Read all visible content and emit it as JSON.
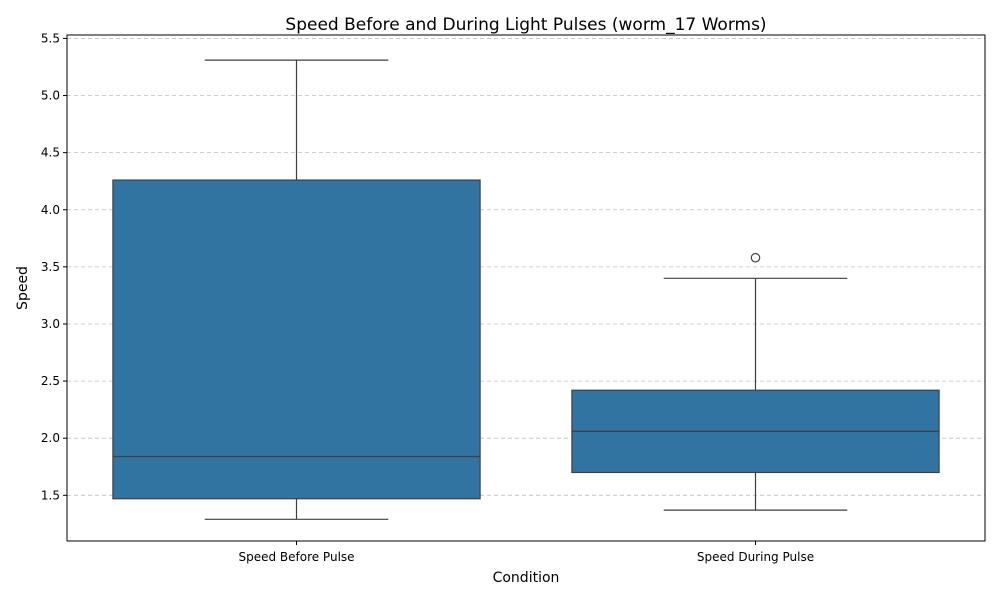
{
  "chart_data": {
    "type": "box",
    "title": "Speed Before and During Light Pulses (worm_17 Worms)",
    "xlabel": "Condition",
    "ylabel": "Speed",
    "ylim": [
      1.1,
      5.53
    ],
    "yticks": [
      1.5,
      2.0,
      2.5,
      3.0,
      3.5,
      4.0,
      4.5,
      5.0,
      5.5
    ],
    "ytick_labels": [
      "1.5",
      "2.0",
      "2.5",
      "3.0",
      "3.5",
      "4.0",
      "4.5",
      "5.0",
      "5.5"
    ],
    "grid": true,
    "box_color": "#3274a1",
    "categories": [
      "Speed Before Pulse",
      "Speed During Pulse"
    ],
    "boxes": [
      {
        "category": "Speed Before Pulse",
        "whisker_low": 1.29,
        "q1": 1.47,
        "median": 1.84,
        "q3": 4.26,
        "whisker_high": 5.31,
        "fliers": []
      },
      {
        "category": "Speed During Pulse",
        "whisker_low": 1.37,
        "q1": 1.7,
        "median": 2.06,
        "q3": 2.42,
        "whisker_high": 3.4,
        "fliers": [
          3.58
        ]
      }
    ]
  }
}
